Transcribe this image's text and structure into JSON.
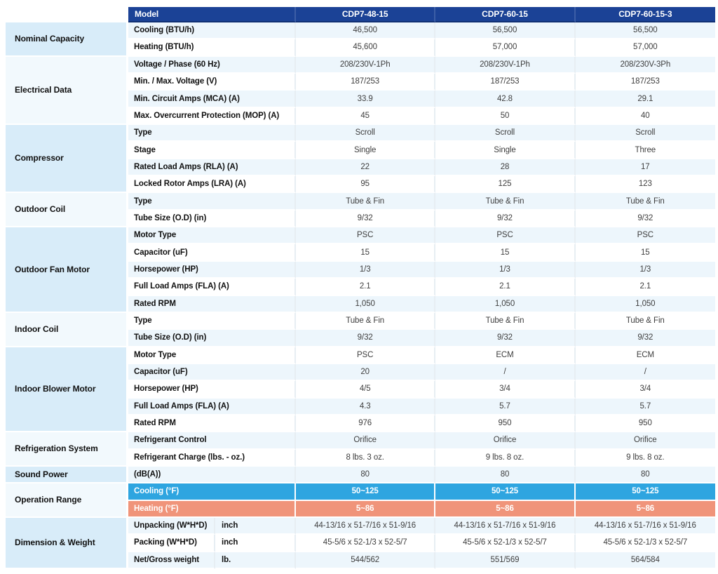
{
  "header": {
    "model_label": "Model",
    "columns": [
      "CDP7-48-15",
      "CDP7-60-15",
      "CDP7-60-15-3"
    ]
  },
  "colors": {
    "header_bg": "#1b4296",
    "row_tint_blue": "#edf6fc",
    "row_tint_white": "#ffffff",
    "category_bg_a": "#d8ecf9",
    "category_bg_b": "#f2f9fd",
    "cooling_row_bg": "#2ea5e0",
    "heating_row_bg": "#f0947a"
  },
  "sections": [
    {
      "category": "Nominal Capacity",
      "rows": [
        {
          "param": "Cooling (BTU/h)",
          "tint": "blue",
          "values": [
            "46,500",
            "56,500",
            "56,500"
          ]
        },
        {
          "param": "Heating (BTU/h)",
          "tint": "white",
          "values": [
            "45,600",
            "57,000",
            "57,000"
          ]
        }
      ]
    },
    {
      "category": "Electrical Data",
      "rows": [
        {
          "param": "Voltage / Phase (60 Hz)",
          "tint": "blue",
          "values": [
            "208/230V-1Ph",
            "208/230V-1Ph",
            "208/230V-3Ph"
          ]
        },
        {
          "param": "Min. / Max. Voltage (V)",
          "tint": "white",
          "values": [
            "187/253",
            "187/253",
            "187/253"
          ]
        },
        {
          "param": "Min. Circuit Amps (MCA) (A)",
          "tint": "blue",
          "values": [
            "33.9",
            "42.8",
            "29.1"
          ]
        },
        {
          "param": "Max. Overcurrent Protection (MOP) (A)",
          "tint": "white",
          "values": [
            "45",
            "50",
            "40"
          ]
        }
      ]
    },
    {
      "category": "Compressor",
      "rows": [
        {
          "param": "Type",
          "tint": "blue",
          "values": [
            "Scroll",
            "Scroll",
            "Scroll"
          ]
        },
        {
          "param": "Stage",
          "tint": "white",
          "values": [
            "Single",
            "Single",
            "Three"
          ]
        },
        {
          "param": "Rated Load Amps (RLA) (A)",
          "tint": "blue",
          "values": [
            "22",
            "28",
            "17"
          ]
        },
        {
          "param": "Locked Rotor Amps (LRA) (A)",
          "tint": "white",
          "values": [
            "95",
            "125",
            "123"
          ]
        }
      ]
    },
    {
      "category": "Outdoor Coil",
      "rows": [
        {
          "param": "Type",
          "tint": "blue",
          "values": [
            "Tube & Fin",
            "Tube & Fin",
            "Tube & Fin"
          ]
        },
        {
          "param": "Tube Size (O.D) (in)",
          "tint": "white",
          "values": [
            "9/32",
            "9/32",
            "9/32"
          ]
        }
      ]
    },
    {
      "category": "Outdoor Fan Motor",
      "rows": [
        {
          "param": "Motor Type",
          "tint": "blue",
          "values": [
            "PSC",
            "PSC",
            "PSC"
          ]
        },
        {
          "param": "Capacitor (uF)",
          "tint": "white",
          "values": [
            "15",
            "15",
            "15"
          ]
        },
        {
          "param": "Horsepower (HP)",
          "tint": "blue",
          "values": [
            "1/3",
            "1/3",
            "1/3"
          ]
        },
        {
          "param": "Full Load Amps (FLA) (A)",
          "tint": "white",
          "values": [
            "2.1",
            "2.1",
            "2.1"
          ]
        },
        {
          "param": "Rated RPM",
          "tint": "blue",
          "values": [
            "1,050",
            "1,050",
            "1,050"
          ]
        }
      ]
    },
    {
      "category": "Indoor Coil",
      "rows": [
        {
          "param": "Type",
          "tint": "white",
          "values": [
            "Tube & Fin",
            "Tube & Fin",
            "Tube & Fin"
          ]
        },
        {
          "param": "Tube Size (O.D) (in)",
          "tint": "blue",
          "values": [
            "9/32",
            "9/32",
            "9/32"
          ]
        }
      ]
    },
    {
      "category": "Indoor Blower Motor",
      "rows": [
        {
          "param": "Motor Type",
          "tint": "white",
          "values": [
            "PSC",
            "ECM",
            "ECM"
          ]
        },
        {
          "param": "Capacitor (uF)",
          "tint": "blue",
          "values": [
            "20",
            "/",
            "/"
          ]
        },
        {
          "param": "Horsepower (HP)",
          "tint": "white",
          "values": [
            "4/5",
            "3/4",
            "3/4"
          ]
        },
        {
          "param": "Full Load Amps (FLA) (A)",
          "tint": "blue",
          "values": [
            "4.3",
            "5.7",
            "5.7"
          ]
        },
        {
          "param": "Rated RPM",
          "tint": "white",
          "values": [
            "976",
            "950",
            "950"
          ]
        }
      ]
    },
    {
      "category": "Refrigeration System",
      "rows": [
        {
          "param": "Refrigerant Control",
          "tint": "blue",
          "values": [
            "Orifice",
            "Orifice",
            "Orifice"
          ]
        },
        {
          "param": "Refrigerant Charge (lbs. - oz.)",
          "tint": "white",
          "values": [
            "8 lbs. 3 oz.",
            "9 lbs. 8 oz.",
            "9 lbs. 8 oz."
          ]
        }
      ]
    },
    {
      "category": "Sound Power",
      "rows": [
        {
          "param": "(dB(A))",
          "tint": "blue",
          "values": [
            "80",
            "80",
            "80"
          ]
        }
      ]
    },
    {
      "category": "Operation Range",
      "rows": [
        {
          "param": "Cooling (°F)",
          "highlight": "cooling",
          "values": [
            "50~125",
            "50~125",
            "50~125"
          ]
        },
        {
          "param": "Heating (°F)",
          "highlight": "heating",
          "values": [
            "5~86",
            "5~86",
            "5~86"
          ]
        }
      ]
    },
    {
      "category": "Dimension & Weight",
      "rows": [
        {
          "param": "Unpacking (W*H*D)",
          "unit": "inch",
          "tint": "blue",
          "values": [
            "44-13/16 x 51-7/16 x 51-9/16",
            "44-13/16 x 51-7/16 x 51-9/16",
            "44-13/16 x 51-7/16 x 51-9/16"
          ]
        },
        {
          "param": "Packing (W*H*D)",
          "unit": "inch",
          "tint": "white",
          "values": [
            "45-5/6 x 52-1/3 x 52-5/7",
            "45-5/6 x 52-1/3 x 52-5/7",
            "45-5/6 x 52-1/3 x 52-5/7"
          ]
        },
        {
          "param": "Net/Gross weight",
          "unit": "lb.",
          "tint": "blue",
          "values": [
            "544/562",
            "551/569",
            "564/584"
          ]
        }
      ]
    }
  ]
}
